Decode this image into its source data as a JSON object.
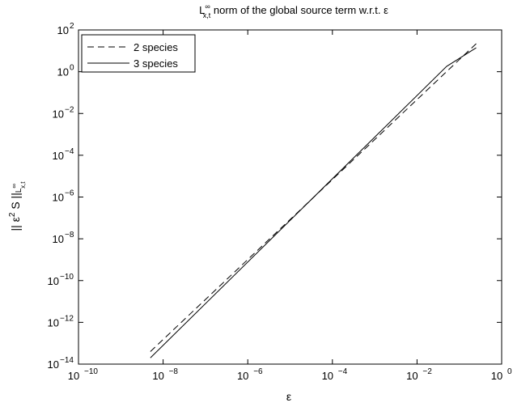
{
  "chart_data": {
    "type": "line",
    "title_main": "L",
    "title_sup": "∞",
    "title_sub": "x,t",
    "title_rest": " norm of the global source term w.r.t. ε",
    "xlabel": "ε",
    "ylabel": {
      "bars_left": "|| ε",
      "sup": "2",
      "mid": " S ||",
      "L": "L",
      "L_sup": "∞",
      "L_sub": "x,t"
    },
    "x_scale": "log",
    "y_scale": "log",
    "xlim": [
      1e-10,
      1
    ],
    "ylim": [
      1e-14,
      100
    ],
    "x_ticks": [
      {
        "value": 1e-10,
        "base": "10",
        "exp": "−10"
      },
      {
        "value": 1e-08,
        "base": "10",
        "exp": "−8"
      },
      {
        "value": 1e-06,
        "base": "10",
        "exp": "−6"
      },
      {
        "value": 0.0001,
        "base": "10",
        "exp": "−4"
      },
      {
        "value": 0.01,
        "base": "10",
        "exp": "−2"
      },
      {
        "value": 1,
        "base": "10",
        "exp": "0"
      }
    ],
    "y_ticks": [
      {
        "value": 1e-14,
        "base": "10",
        "exp": "−14"
      },
      {
        "value": 1e-12,
        "base": "10",
        "exp": "−12"
      },
      {
        "value": 1e-10,
        "base": "10",
        "exp": "−10"
      },
      {
        "value": 1e-08,
        "base": "10",
        "exp": "−8"
      },
      {
        "value": 1e-06,
        "base": "10",
        "exp": "−6"
      },
      {
        "value": 0.0001,
        "base": "10",
        "exp": "−4"
      },
      {
        "value": 0.01,
        "base": "10",
        "exp": "−2"
      },
      {
        "value": 1,
        "base": "10",
        "exp": "0"
      },
      {
        "value": 100,
        "base": "10",
        "exp": "2"
      }
    ],
    "grid": false,
    "legend_position": "top-left",
    "series": [
      {
        "name": "2 species",
        "style": "dashed",
        "color": "#000000",
        "x": [
          5e-09,
          0.25
        ],
        "y": [
          4e-14,
          22
        ]
      },
      {
        "name": "3 species",
        "style": "solid",
        "color": "#000000",
        "x": [
          5e-09,
          0.05,
          0.25
        ],
        "y": [
          2e-14,
          1.8,
          14
        ]
      }
    ]
  }
}
